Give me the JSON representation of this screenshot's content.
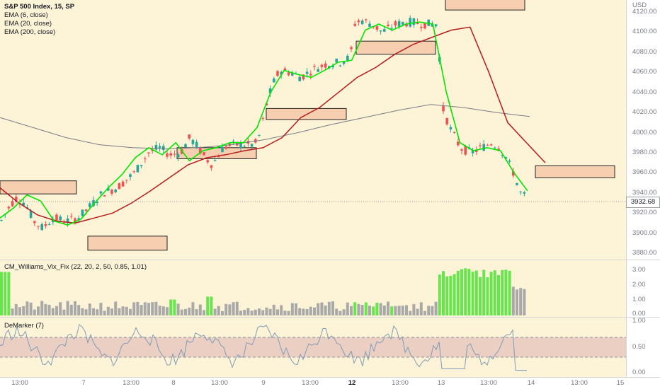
{
  "symbol": {
    "title": "S&P 500 Index, 15, SP",
    "indicators": [
      "EMA (6, close)",
      "EMA (20, close)",
      "EMA (200, close)"
    ],
    "current_price": "3932.68",
    "currency": "USD"
  },
  "price_axis": {
    "ticks": [
      "4120.00",
      "4100.00",
      "4080.00",
      "4060.00",
      "4040.00",
      "4020.00",
      "4000.00",
      "3980.00",
      "3960.00",
      "3940.00",
      "3920.00",
      "3900.00",
      "3880.00"
    ]
  },
  "vix_pane": {
    "label": "CM_Williams_Vix_Fix (22, 20, 2, 50, 0.85, 1.01)",
    "ticks": [
      "3.00",
      "2.00",
      "1.00",
      "0.00"
    ]
  },
  "demarker_pane": {
    "label": "DeMarker (7)",
    "ticks": [
      "1.00",
      "0.50",
      "0.00"
    ]
  },
  "time_axis": {
    "labels": [
      "13:00",
      "7",
      "13:00",
      "8",
      "13:00",
      "9",
      "13:00",
      "12",
      "13:00",
      "13",
      "13:00",
      "14",
      "13:00",
      "15"
    ],
    "bold": [
      "12"
    ]
  },
  "colors": {
    "bull": "#26a69a",
    "bear": "#ef5350",
    "ema_fast": "#00e600",
    "ema_mid": "#b71c1c",
    "ema_slow": "#787b86",
    "background": "#fdf3d6",
    "zone_fill": "#f6cfb0",
    "vix_green": "#66e64d",
    "vix_gray": "#a9a9a9",
    "demarker_line": "#7e9cb8",
    "demarker_band": "#e8c8c0"
  },
  "chart_data": [
    {
      "type": "candlestick",
      "title": "S&P 500 Index, 15, SP",
      "ylabel": "USD",
      "ylim": [
        3870,
        4125
      ],
      "series": [
        {
          "name": "EMA (6, close)",
          "approx_values": [
            3915,
            3925,
            3938,
            3932,
            3912,
            3908,
            3914,
            3930,
            3945,
            3958,
            3975,
            3985,
            3978,
            3990,
            3972,
            3982,
            3985,
            3990,
            3990,
            4005,
            4040,
            4062,
            4058,
            4055,
            4062,
            4070,
            4072,
            4102,
            4108,
            4102,
            4108,
            4110,
            4108,
            4040,
            3990,
            3982,
            3985,
            3982,
            3960,
            3942
          ]
        },
        {
          "name": "EMA (20, close)",
          "approx_values": [
            3945,
            3930,
            3918,
            3912,
            3910,
            3915,
            3920,
            3930,
            3942,
            3955,
            3968,
            3975,
            3978,
            3982,
            3985,
            3995,
            4015,
            4025,
            4040,
            4055,
            4065,
            4078,
            4088,
            4095,
            4102,
            4105,
            4060,
            4010,
            3990,
            3970
          ]
        },
        {
          "name": "EMA (200, close)",
          "approx_values": [
            4015,
            4005,
            3995,
            3988,
            3985,
            3984,
            3985,
            3988,
            3993,
            4000,
            4008,
            4015,
            4022,
            4028,
            4025,
            4020,
            4016
          ]
        }
      ],
      "price_zones": [
        {
          "low": 3939,
          "high": 3952
        },
        {
          "low": 3883,
          "high": 3897
        },
        {
          "low": 3974,
          "high": 3985
        },
        {
          "low": 4013,
          "high": 4024
        },
        {
          "low": 4078,
          "high": 4091
        },
        {
          "low": 4122,
          "high": 4135
        },
        {
          "low": 3955,
          "high": 3967
        }
      ]
    },
    {
      "type": "bar",
      "title": "CM_Williams_Vix_Fix (22, 20, 2, 50, 0.85, 1.01)",
      "ylim": [
        0,
        3.5
      ],
      "note": "histogram; green bars mark spikes above the upper band"
    },
    {
      "type": "line",
      "title": "DeMarker (7)",
      "ylim": [
        0,
        1
      ],
      "band": [
        0.3,
        0.7
      ]
    }
  ]
}
